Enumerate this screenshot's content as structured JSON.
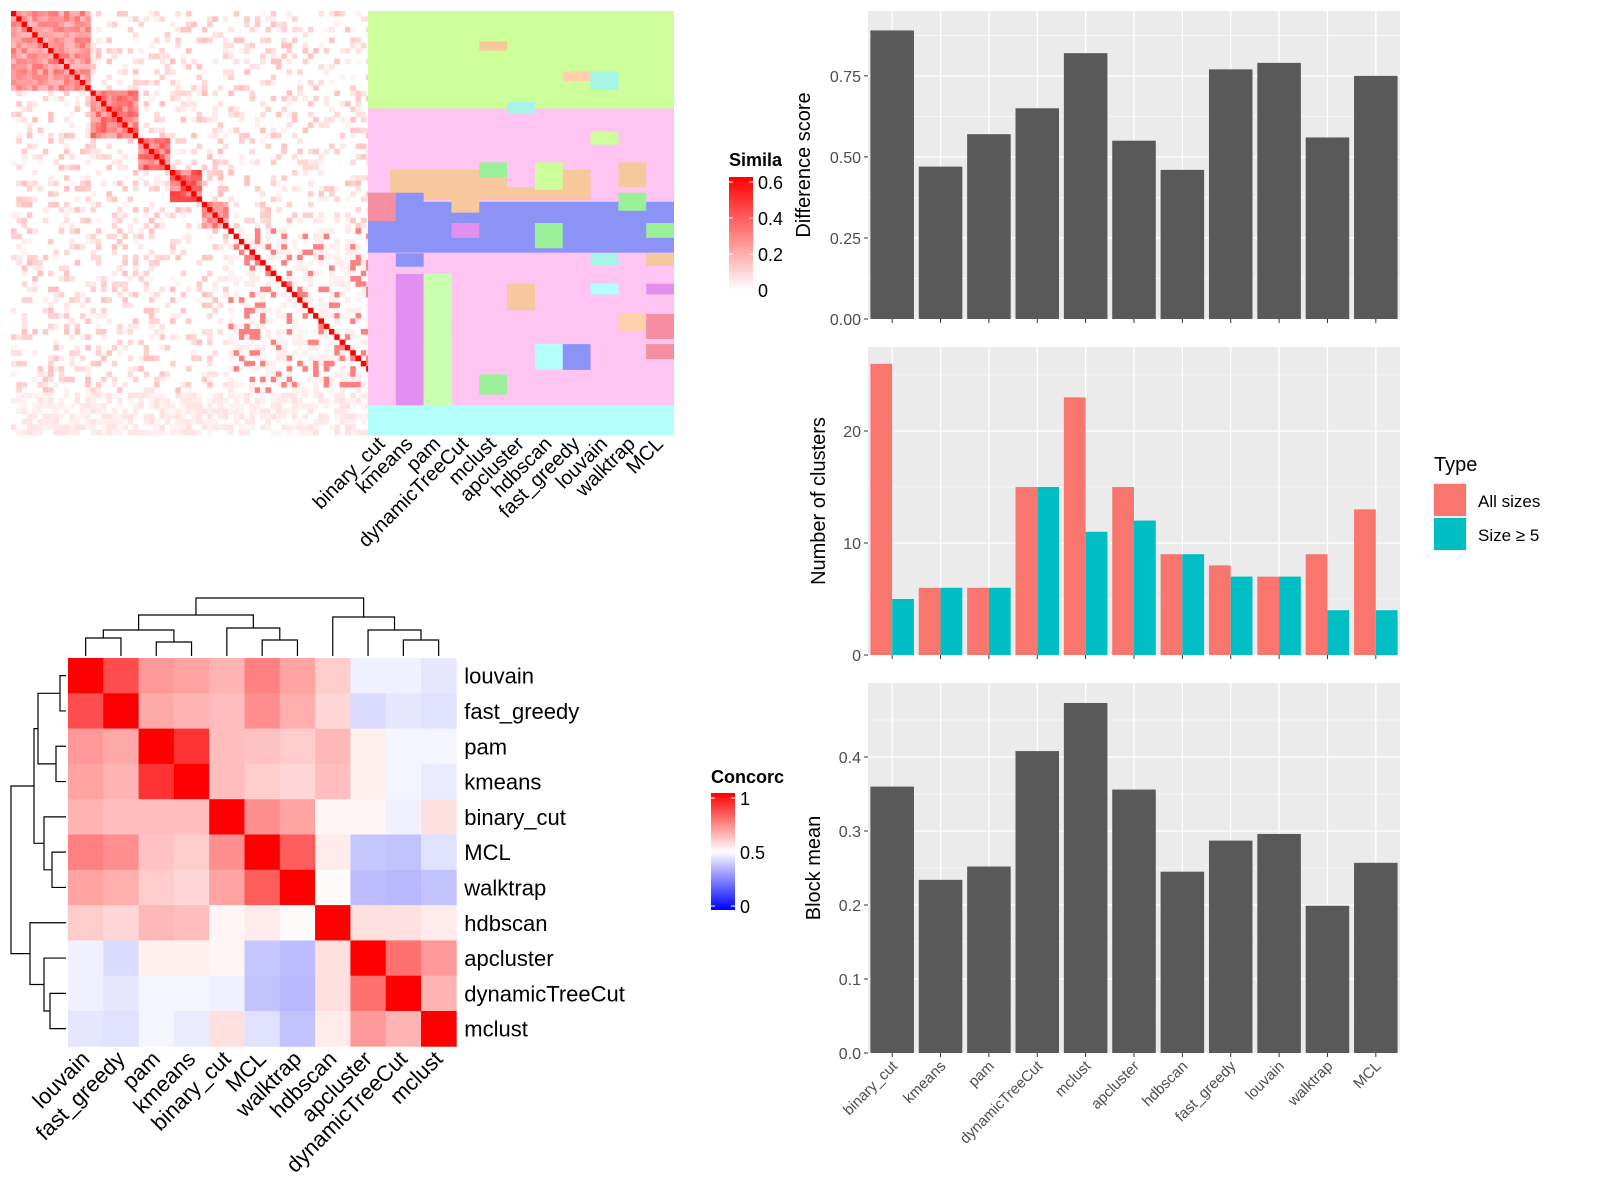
{
  "methods": [
    "binary_cut",
    "kmeans",
    "pam",
    "dynamicTreeCut",
    "mclust",
    "apcluster",
    "hdbscan",
    "fast_greedy",
    "louvain",
    "walktrap",
    "MCL"
  ],
  "heat_order": [
    "louvain",
    "fast_greedy",
    "pam",
    "kmeans",
    "binary_cut",
    "MCL",
    "walktrap",
    "hdbscan",
    "apcluster",
    "dynamicTreeCut",
    "mclust"
  ],
  "colors": {
    "bar": "#595959",
    "panel_bg": "#ebebeb",
    "all_sizes": "#f8766d",
    "size_ge5": "#00bfc4",
    "heat_high": "#ff0000",
    "heat_mid": "#ffffff",
    "heat_low": "#0000ff"
  },
  "similarity_legend": {
    "title": "Simila",
    "ticks": [
      "0.6",
      "0.4",
      "0.2",
      "0"
    ]
  },
  "concordance_legend": {
    "title": "Concorc",
    "ticks": [
      "1",
      "0.5",
      "0"
    ]
  },
  "chart_data": [
    {
      "type": "heatmap",
      "name": "similarity-matrix",
      "legend_title": "Simila",
      "scale": [
        0,
        0.6
      ],
      "blocks": [
        {
          "start": 0.0,
          "end": 0.19,
          "strength": 0.55
        },
        {
          "start": 0.19,
          "end": 0.3,
          "strength": 0.65
        },
        {
          "start": 0.3,
          "end": 0.37,
          "strength": 0.75
        },
        {
          "start": 0.37,
          "end": 0.45,
          "strength": 0.8
        },
        {
          "start": 0.45,
          "end": 0.51,
          "strength": 0.6
        },
        {
          "start": 0.51,
          "end": 0.9,
          "strength": 0.95
        },
        {
          "start": 0.9,
          "end": 1.0,
          "strength": 1.0
        }
      ]
    },
    {
      "type": "table",
      "name": "cluster-assignment-map",
      "columns": [
        "binary_cut",
        "kmeans",
        "pam",
        "dynamicTreeCut",
        "mclust",
        "apcluster",
        "hdbscan",
        "fast_greedy",
        "louvain",
        "walktrap",
        "MCL"
      ]
    },
    {
      "type": "heatmap",
      "name": "concordance-heatmap",
      "legend_title": "Concorc",
      "scale": [
        0,
        1
      ],
      "rows": [
        "louvain",
        "fast_greedy",
        "pam",
        "kmeans",
        "binary_cut",
        "MCL",
        "walktrap",
        "hdbscan",
        "apcluster",
        "dynamicTreeCut",
        "mclust"
      ],
      "columns": [
        "louvain",
        "fast_greedy",
        "pam",
        "kmeans",
        "binary_cut",
        "MCL",
        "walktrap",
        "hdbscan",
        "apcluster",
        "dynamicTreeCut",
        "mclust"
      ],
      "values": [
        [
          1.0,
          0.85,
          0.7,
          0.68,
          0.65,
          0.75,
          0.68,
          0.6,
          0.47,
          0.47,
          0.45
        ],
        [
          0.85,
          1.0,
          0.67,
          0.65,
          0.63,
          0.72,
          0.66,
          0.58,
          0.43,
          0.45,
          0.44
        ],
        [
          0.7,
          0.67,
          1.0,
          0.9,
          0.63,
          0.62,
          0.6,
          0.64,
          0.53,
          0.48,
          0.48
        ],
        [
          0.68,
          0.65,
          0.9,
          1.0,
          0.63,
          0.6,
          0.58,
          0.63,
          0.53,
          0.48,
          0.46
        ],
        [
          0.65,
          0.63,
          0.63,
          0.63,
          1.0,
          0.72,
          0.68,
          0.52,
          0.52,
          0.47,
          0.56
        ],
        [
          0.75,
          0.72,
          0.62,
          0.6,
          0.72,
          1.0,
          0.82,
          0.54,
          0.39,
          0.38,
          0.44
        ],
        [
          0.68,
          0.66,
          0.6,
          0.58,
          0.68,
          0.82,
          1.0,
          0.51,
          0.37,
          0.36,
          0.38
        ],
        [
          0.6,
          0.58,
          0.64,
          0.63,
          0.52,
          0.54,
          0.51,
          1.0,
          0.56,
          0.56,
          0.54
        ],
        [
          0.47,
          0.43,
          0.53,
          0.53,
          0.52,
          0.39,
          0.37,
          0.56,
          1.0,
          0.78,
          0.7
        ],
        [
          0.47,
          0.45,
          0.48,
          0.48,
          0.47,
          0.38,
          0.36,
          0.56,
          0.78,
          1.0,
          0.65
        ],
        [
          0.45,
          0.44,
          0.48,
          0.46,
          0.56,
          0.44,
          0.38,
          0.54,
          0.7,
          0.65,
          1.0
        ]
      ]
    },
    {
      "type": "bar",
      "name": "difference-score",
      "categories": [
        "binary_cut",
        "kmeans",
        "pam",
        "dynamicTreeCut",
        "mclust",
        "apcluster",
        "hdbscan",
        "fast_greedy",
        "louvain",
        "walktrap",
        "MCL"
      ],
      "values": [
        0.89,
        0.47,
        0.57,
        0.65,
        0.82,
        0.55,
        0.46,
        0.77,
        0.79,
        0.56,
        0.75
      ],
      "ylabel": "Difference score",
      "ylim": [
        0,
        0.95
      ],
      "yticks": [
        0,
        0.25,
        0.5,
        0.75
      ],
      "ytick_labels": [
        "0.00",
        "0.25",
        "0.50",
        "0.75"
      ]
    },
    {
      "type": "bar",
      "name": "number-of-clusters",
      "categories": [
        "binary_cut",
        "kmeans",
        "pam",
        "dynamicTreeCut",
        "mclust",
        "apcluster",
        "hdbscan",
        "fast_greedy",
        "louvain",
        "walktrap",
        "MCL"
      ],
      "series": [
        {
          "name": "All sizes",
          "values": [
            26,
            6,
            6,
            15,
            23,
            15,
            9,
            8,
            7,
            9,
            13
          ]
        },
        {
          "name": "Size ≥ 5",
          "values": [
            5,
            6,
            6,
            15,
            11,
            12,
            9,
            7,
            7,
            4,
            4
          ]
        }
      ],
      "ylabel": "Number of clusters",
      "ylim": [
        0,
        27.5
      ],
      "yticks": [
        0,
        10,
        20
      ],
      "ytick_labels": [
        "0",
        "10",
        "20"
      ],
      "legend_title": "Type",
      "legend_position": "right"
    },
    {
      "type": "bar",
      "name": "block-mean",
      "categories": [
        "binary_cut",
        "kmeans",
        "pam",
        "dynamicTreeCut",
        "mclust",
        "apcluster",
        "hdbscan",
        "fast_greedy",
        "louvain",
        "walktrap",
        "MCL"
      ],
      "values": [
        0.36,
        0.234,
        0.252,
        0.408,
        0.473,
        0.356,
        0.245,
        0.287,
        0.296,
        0.199,
        0.257
      ],
      "ylabel": "Block mean",
      "ylim": [
        0,
        0.5
      ],
      "yticks": [
        0,
        0.1,
        0.2,
        0.3,
        0.4
      ],
      "ytick_labels": [
        "0.0",
        "0.1",
        "0.2",
        "0.3",
        "0.4"
      ]
    }
  ]
}
